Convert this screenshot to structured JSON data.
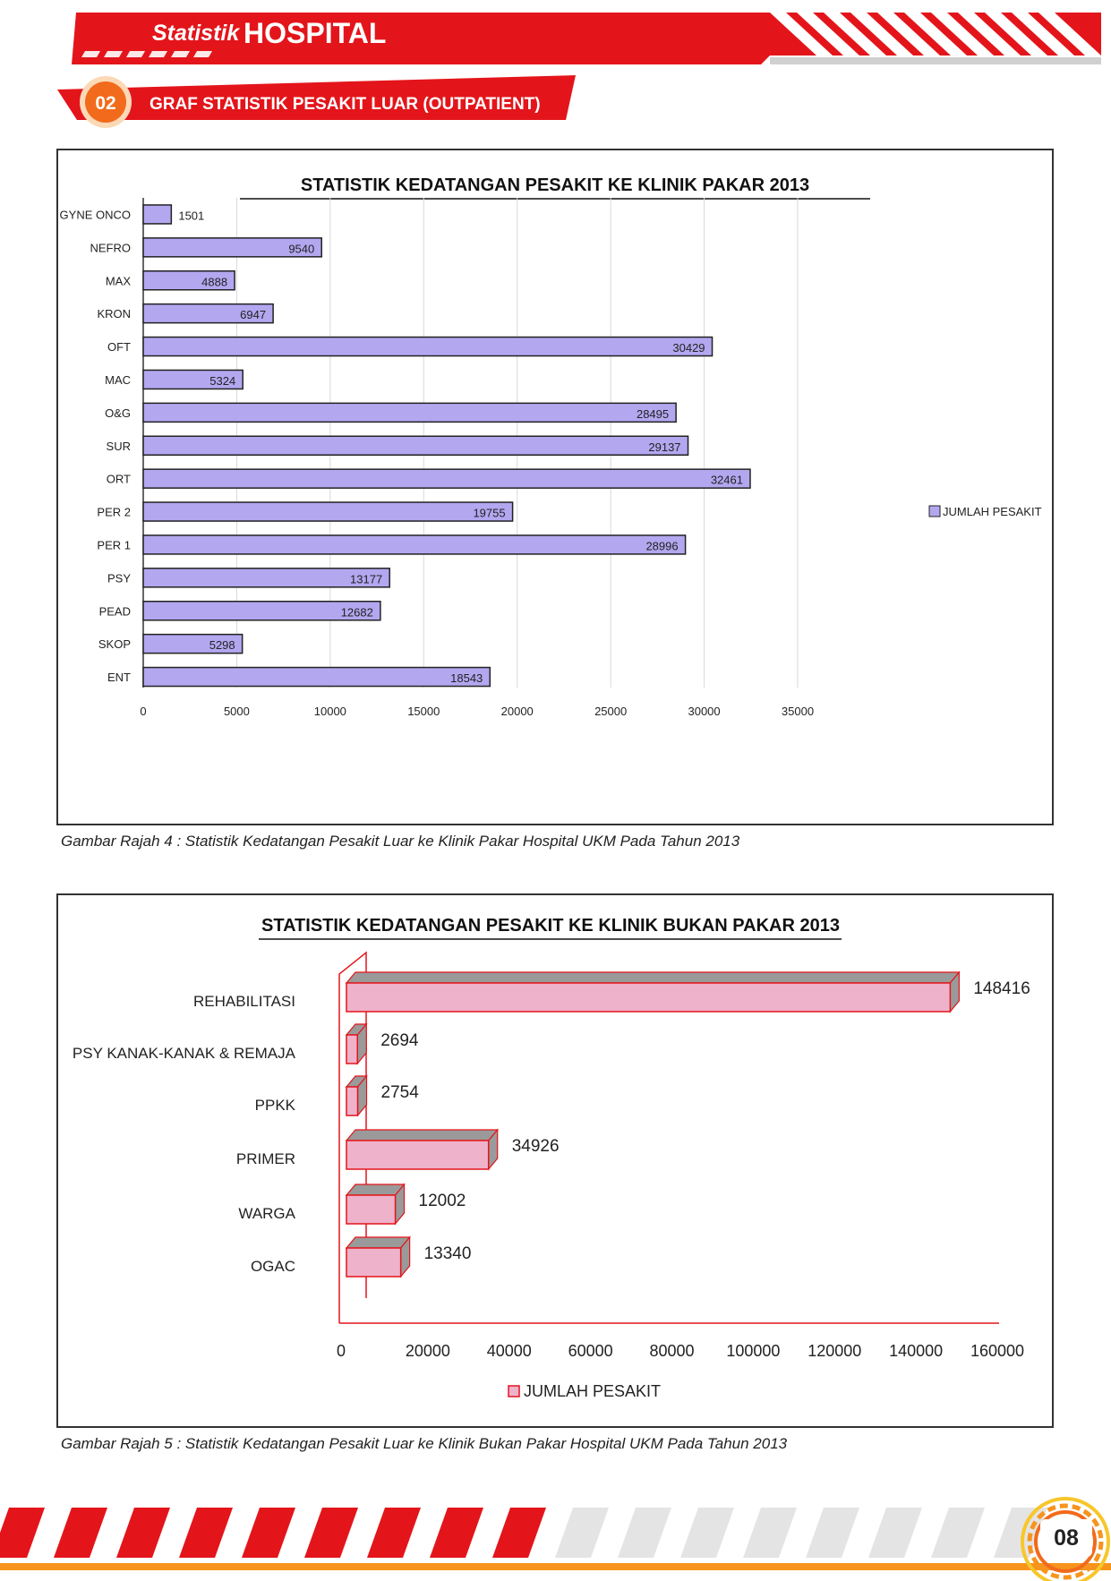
{
  "header": {
    "title_script": "Statistik",
    "title_main": "HOSPITAL",
    "section_number": "02",
    "section_title": "GRAF STATISTIK PESAKIT LUAR (OUTPATIENT)"
  },
  "captions": {
    "figure4": "Gambar Rajah 4 : Statistik Kedatangan Pesakit Luar ke Klinik Pakar  Hospital UKM Pada Tahun 2013",
    "figure5": "Gambar Rajah 5 : Statistik Kedatangan Pesakit Luar ke Klinik Bukan Pakar  Hospital UKM Pada Tahun 2013"
  },
  "footer": {
    "page_number": "08"
  },
  "colors": {
    "brand_red": "#e3151b",
    "badge_orange": "#f26a1b",
    "bar_purple": "#b3a7f0",
    "bar_pink": "#efb2cb",
    "bar_side_gray": "#9a9a9a",
    "footer_orange": "#f7941d"
  },
  "chart_data": [
    {
      "type": "bar",
      "orientation": "horizontal",
      "title": "STATISTIK KEDATANGAN PESAKIT KE KLINIK PAKAR 2013",
      "categories": [
        "GYNE ONCO",
        "NEFRO",
        "MAX",
        "KRON",
        "OFT",
        "MAC",
        "O&G",
        "SUR",
        "ORT",
        "PER 2",
        "PER 1",
        "PSY",
        "PEAD",
        "SKOP",
        "ENT"
      ],
      "series": [
        {
          "name": "JUMLAH PESAKIT",
          "values": [
            1501,
            9540,
            4888,
            6947,
            30429,
            5324,
            28495,
            29137,
            32461,
            19755,
            28996,
            13177,
            12682,
            5298,
            18543
          ]
        }
      ],
      "xlim": [
        0,
        35000
      ],
      "xticks": [
        0,
        5000,
        10000,
        15000,
        20000,
        25000,
        30000,
        35000
      ],
      "grid": true,
      "legend": "right"
    },
    {
      "type": "bar",
      "orientation": "horizontal",
      "style": "3d",
      "title": "STATISTIK KEDATANGAN PESAKIT KE KLINIK BUKAN PAKAR 2013",
      "categories": [
        "REHABILITASI",
        "PSY KANAK-KANAK & REMAJA",
        "PPKK",
        "PRIMER",
        "WARGA",
        "OGAC"
      ],
      "series": [
        {
          "name": "JUMLAH PESAKIT",
          "values": [
            148416,
            2694,
            2754,
            34926,
            12002,
            13340
          ]
        }
      ],
      "xlim": [
        0,
        160000
      ],
      "xticks": [
        0,
        20000,
        40000,
        60000,
        80000,
        100000,
        120000,
        140000,
        160000
      ],
      "grid": false,
      "legend": "bottom"
    }
  ]
}
